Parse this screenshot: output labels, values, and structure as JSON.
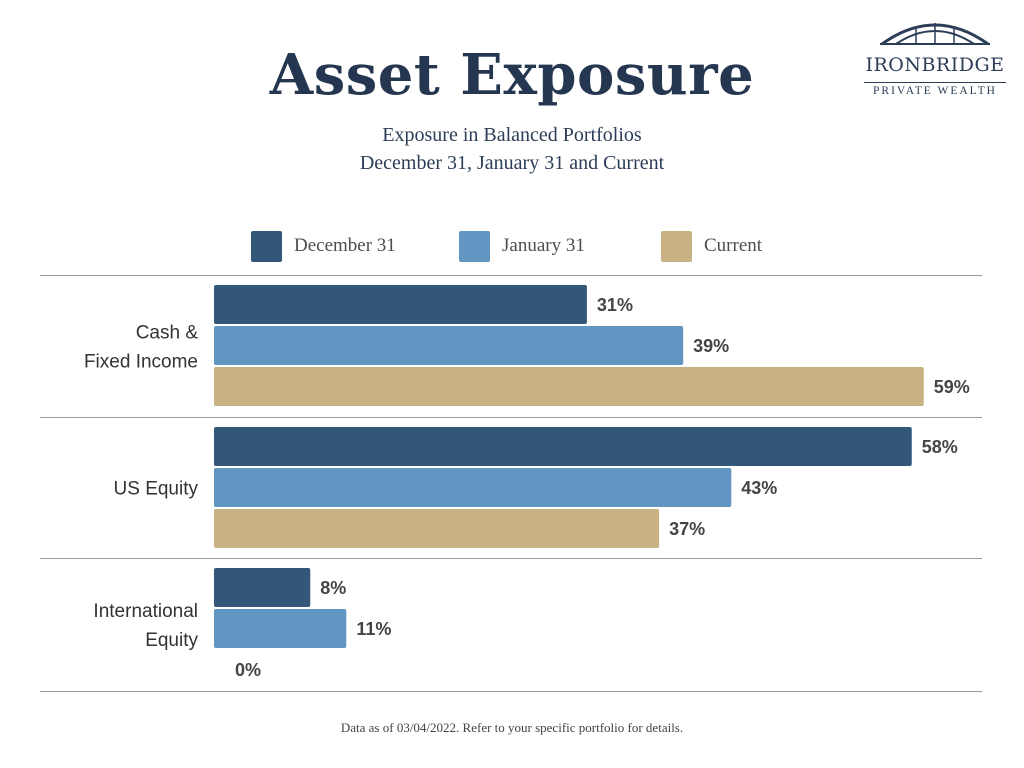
{
  "logo": {
    "name": "IRONBRIDGE",
    "tagline": "PRIVATE WEALTH"
  },
  "footnote": "Data as of 03/04/2022.  Refer to your specific portfolio for details.",
  "colors": {
    "december": "#325778",
    "january": "#6196c2",
    "current": "#c8b283",
    "text_dark": "#243650"
  },
  "chart_data": {
    "type": "bar",
    "orientation": "horizontal",
    "title": "Asset Exposure",
    "subtitle": [
      "Exposure in Balanced Portfolios",
      "December 31, January 31 and Current"
    ],
    "categories": [
      [
        "Cash &",
        "Fixed Income"
      ],
      [
        "US Equity"
      ],
      [
        "International",
        "Equity"
      ]
    ],
    "series": [
      {
        "name": "December 31",
        "values": [
          31,
          58,
          8
        ],
        "labels": [
          "31%",
          "58%",
          "8%"
        ]
      },
      {
        "name": "January 31",
        "values": [
          39,
          43,
          11
        ],
        "labels": [
          "39%",
          "43%",
          "11%"
        ]
      },
      {
        "name": "Current",
        "values": [
          59,
          37,
          0
        ],
        "labels": [
          "59%",
          "37%",
          "0%"
        ]
      }
    ],
    "unit": "%",
    "legend_position": "top",
    "grid": false
  }
}
